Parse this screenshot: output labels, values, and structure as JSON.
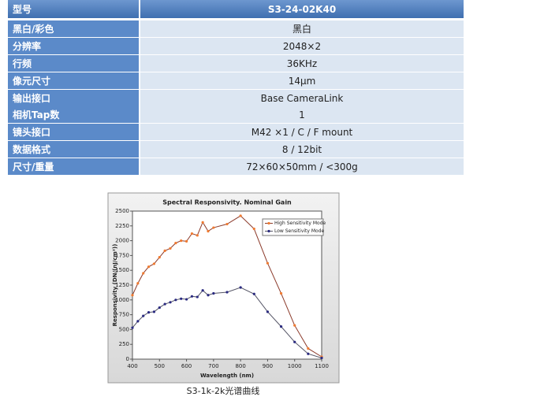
{
  "table": {
    "rows": [
      [
        "型号",
        "S3-24-02K40"
      ],
      [
        "黑白/彩色",
        "黑白"
      ],
      [
        "分辨率",
        "2048×2"
      ],
      [
        "行频",
        "36KHz"
      ],
      [
        "像元尺寸",
        "14μm"
      ],
      [
        "输出接口",
        "Base CameraLink"
      ],
      [
        "相机Tap数",
        "1"
      ],
      [
        "镜头接口",
        "M42 ×1 / C / F mount"
      ],
      [
        "数据格式",
        "8 / 12bit"
      ],
      [
        "尺寸/重量",
        "72×60×50mm / <300g"
      ]
    ]
  },
  "chart_data": {
    "type": "line",
    "title": "Spectral Responsivity. Nominal Gain",
    "x_label": "Wavelength (nm)",
    "y_label": "Responsivity (DN/(nJ/cm²))",
    "x": [
      400,
      420,
      440,
      460,
      480,
      500,
      520,
      540,
      560,
      580,
      600,
      620,
      640,
      660,
      680,
      700,
      750,
      800,
      850,
      900,
      950,
      1000,
      1050,
      1100
    ],
    "series": [
      {
        "name": "High Sensitivity Mode",
        "color": "#8b3a2a",
        "marker_color": "#f07a30",
        "values": [
          1080,
          1280,
          1450,
          1560,
          1610,
          1720,
          1830,
          1870,
          1960,
          2000,
          1990,
          2120,
          2090,
          2310,
          2160,
          2220,
          2280,
          2420,
          2200,
          1620,
          1110,
          570,
          180,
          40
        ]
      },
      {
        "name": "Low Sensitivity Mode",
        "color": "#555566",
        "marker_color": "#2a2a80",
        "values": [
          530,
          640,
          730,
          790,
          800,
          870,
          930,
          960,
          1000,
          1020,
          1010,
          1060,
          1050,
          1160,
          1080,
          1110,
          1130,
          1210,
          1100,
          800,
          550,
          290,
          90,
          20
        ]
      }
    ],
    "xlim": [
      400,
      1100
    ],
    "xticks": [
      400,
      500,
      600,
      700,
      800,
      900,
      1000,
      1100
    ],
    "ylim": [
      0,
      2500
    ],
    "yticks": [
      0,
      250,
      500,
      750,
      1000,
      1250,
      1500,
      1750,
      2000,
      2250,
      2500
    ],
    "legend": "upper right"
  },
  "caption": "S3-1k-2k光谱曲线"
}
